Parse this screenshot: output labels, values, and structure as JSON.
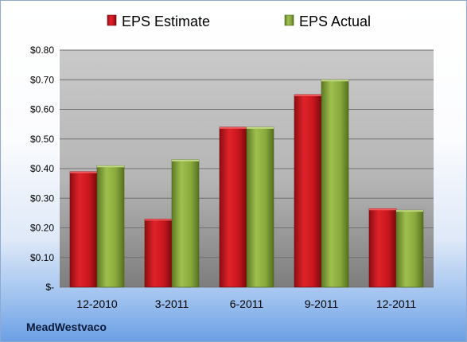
{
  "company": "MeadWestvaco",
  "colors": {
    "estimate": "#c8161d",
    "actual": "#8aaa3c"
  },
  "chart_data": {
    "type": "bar",
    "categories": [
      "12-2010",
      "3-2011",
      "6-2011",
      "9-2011",
      "12-2011"
    ],
    "series": [
      {
        "name": "EPS Estimate",
        "values": [
          0.39,
          0.23,
          0.54,
          0.65,
          0.265
        ]
      },
      {
        "name": "EPS Actual",
        "values": [
          0.41,
          0.43,
          0.54,
          0.7,
          0.26
        ]
      }
    ],
    "ylim": [
      0,
      0.8
    ],
    "yticks": [
      0,
      0.1,
      0.2,
      0.3,
      0.4,
      0.5,
      0.6,
      0.7,
      0.8
    ],
    "ytick_labels": [
      "$-",
      "$0.10",
      "$0.20",
      "$0.30",
      "$0.40",
      "$0.50",
      "$0.60",
      "$0.70",
      "$0.80"
    ],
    "grid": true,
    "legend": "top-center",
    "title": "",
    "xlabel": "",
    "ylabel": ""
  }
}
